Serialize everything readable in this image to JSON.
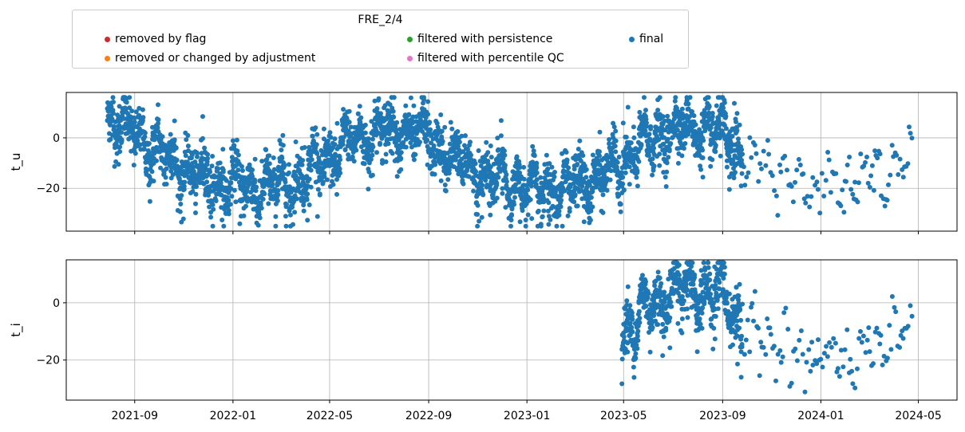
{
  "chart_data": {
    "type": "scatter",
    "legend": {
      "title": "FRE_2/4",
      "placement": "upper-left-outside",
      "entries": [
        {
          "label": "removed by flag",
          "color": "#d62728"
        },
        {
          "label": "removed or changed by adjustment",
          "color": "#ff7f0e"
        },
        {
          "label": "filtered with persistence",
          "color": "#2ca02c"
        },
        {
          "label": "filtered with percentile QC",
          "color": "#e377c2"
        },
        {
          "label": "final",
          "color": "#1f77b4"
        }
      ]
    },
    "x_axis": {
      "type": "date",
      "range": [
        "2021-06-08",
        "2024-06-18"
      ],
      "ticks": [
        "2021-09",
        "2022-01",
        "2022-05",
        "2022-09",
        "2023-01",
        "2023-05",
        "2023-09",
        "2024-01",
        "2024-05"
      ],
      "tick_dates": [
        "2021-09-01",
        "2022-01-01",
        "2022-05-01",
        "2022-09-01",
        "2023-01-01",
        "2023-05-01",
        "2023-09-01",
        "2024-01-01",
        "2024-05-01"
      ]
    },
    "grid": true,
    "point_color": "#1f77b4",
    "panels": [
      {
        "ylabel": "t_u",
        "ylim": [
          -37,
          18
        ],
        "yticks": [
          0,
          -20
        ],
        "ytick_labels": [
          "0",
          "−20"
        ],
        "data_start": "2021-07-29",
        "data_end": "2024-04-24",
        "dense_until": "2023-09-25",
        "monthly_mean": [
          [
            "2021-08-01",
            8
          ],
          [
            "2021-09-01",
            2
          ],
          [
            "2021-10-01",
            -6
          ],
          [
            "2021-11-01",
            -12
          ],
          [
            "2021-12-01",
            -17
          ],
          [
            "2022-01-01",
            -18
          ],
          [
            "2022-02-01",
            -20
          ],
          [
            "2022-03-01",
            -19
          ],
          [
            "2022-04-01",
            -14
          ],
          [
            "2022-05-01",
            -8
          ],
          [
            "2022-06-01",
            -1
          ],
          [
            "2022-07-01",
            3
          ],
          [
            "2022-08-01",
            3
          ],
          [
            "2022-09-01",
            -1
          ],
          [
            "2022-10-01",
            -8
          ],
          [
            "2022-11-01",
            -14
          ],
          [
            "2022-12-01",
            -17
          ],
          [
            "2023-01-01",
            -19
          ],
          [
            "2023-02-01",
            -20
          ],
          [
            "2023-03-01",
            -19
          ],
          [
            "2023-04-01",
            -16
          ],
          [
            "2023-05-01",
            -9
          ],
          [
            "2023-06-01",
            -2
          ],
          [
            "2023-07-01",
            4
          ],
          [
            "2023-08-01",
            4
          ],
          [
            "2023-09-01",
            0
          ],
          [
            "2023-10-01",
            -8
          ],
          [
            "2023-11-01",
            -14
          ],
          [
            "2023-12-01",
            -18
          ],
          [
            "2024-01-01",
            -19
          ],
          [
            "2024-02-01",
            -18
          ],
          [
            "2024-03-01",
            -16
          ],
          [
            "2024-04-01",
            -12
          ],
          [
            "2024-05-01",
            -8
          ]
        ],
        "observed_min": -35,
        "observed_max": 16
      },
      {
        "ylabel": "t_i",
        "ylim": [
          -34,
          15
        ],
        "yticks": [
          0,
          -20
        ],
        "ytick_labels": [
          "0",
          "−20"
        ],
        "data_start": "2023-04-29",
        "data_end": "2024-04-24",
        "dense_until": "2023-09-25",
        "monthly_mean": [
          [
            "2023-05-01",
            -10
          ],
          [
            "2023-06-01",
            -2
          ],
          [
            "2023-07-01",
            5
          ],
          [
            "2023-08-01",
            5
          ],
          [
            "2023-09-01",
            2
          ],
          [
            "2023-10-01",
            -10
          ],
          [
            "2023-11-01",
            -13
          ],
          [
            "2023-12-01",
            -16
          ],
          [
            "2024-01-01",
            -21
          ],
          [
            "2024-02-01",
            -17
          ],
          [
            "2024-03-01",
            -15
          ],
          [
            "2024-04-01",
            -11
          ],
          [
            "2024-05-01",
            -8
          ]
        ],
        "observed_min": -32,
        "observed_max": 14
      }
    ]
  }
}
